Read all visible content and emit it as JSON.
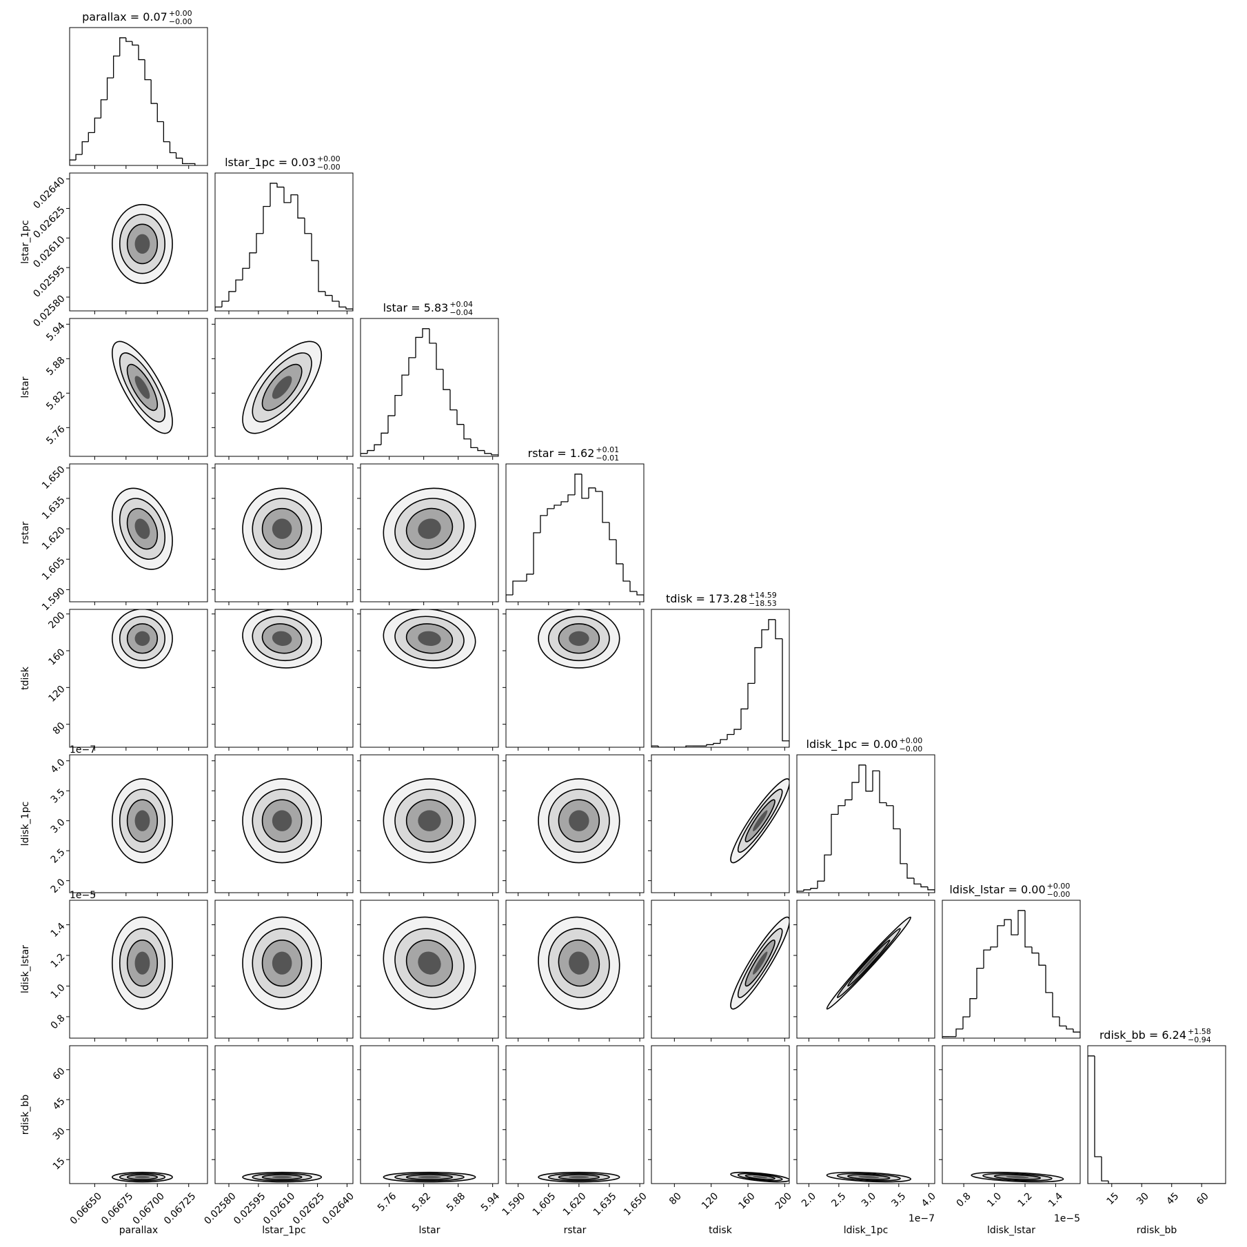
{
  "chart_data": {
    "type": "corner",
    "params": [
      {
        "label": "parallax",
        "title": "parallax = 0.07",
        "upper": "+0.00",
        "lower": "−0.00",
        "xlim": [
          0.0663,
          0.0674
        ],
        "xticks": [
          {
            "value": 0.0665,
            "label": "0.06650"
          },
          0.06675,
          {
            "value": 0.067,
            "label": "0.06700"
          },
          0.06725
        ],
        "bins": [
          0.0663,
          0.06635,
          0.0664,
          0.06645,
          0.0665,
          0.06655,
          0.0666,
          0.06665,
          0.0667,
          0.06675,
          0.0668,
          0.06685,
          0.0669,
          0.06695,
          0.067,
          0.06705,
          0.0671,
          0.06715,
          0.0672,
          0.06725,
          0.0673
        ],
        "counts": [
          3,
          6,
          13,
          18,
          26,
          36,
          48,
          60,
          70,
          68,
          66,
          58,
          47,
          34,
          24,
          13,
          7,
          4,
          1,
          1
        ],
        "mean": 0.06688,
        "sd": 0.00012
      },
      {
        "label": "lstar_1pc",
        "title": "lstar_1pc = 0.03",
        "upper": "+0.00",
        "lower": "−0.00",
        "xlim": [
          0.02573,
          0.02643
        ],
        "xticks": [
          {
            "value": 0.0258,
            "label": "0.02580"
          },
          0.02595,
          {
            "value": 0.0261,
            "label": "0.02610"
          },
          0.02625,
          {
            "value": 0.0264,
            "label": "0.02640"
          }
        ],
        "bins": [
          0.02573,
          0.025765,
          0.0258,
          0.025835,
          0.02587,
          0.025905,
          0.02594,
          0.025975,
          0.02601,
          0.026045,
          0.02608,
          0.026115,
          0.02615,
          0.026185,
          0.02622,
          0.026255,
          0.02629,
          0.026325,
          0.02636,
          0.026395,
          0.02643
        ],
        "counts": [
          2,
          5,
          10,
          16,
          22,
          30,
          40,
          54,
          66,
          64,
          56,
          60,
          48,
          40,
          26,
          10,
          8,
          5,
          2,
          1
        ],
        "mean": 0.02607,
        "sd": 0.0001
      },
      {
        "label": "lstar",
        "title": "lstar = 5.83",
        "upper": "+0.04",
        "lower": "−0.04",
        "xlim": [
          5.71,
          5.95
        ],
        "xticks": [
          5.76,
          5.82,
          5.88,
          5.94
        ],
        "bins": [
          5.71,
          5.722,
          5.734,
          5.746,
          5.758,
          5.77,
          5.782,
          5.794,
          5.806,
          5.818,
          5.83,
          5.842,
          5.854,
          5.866,
          5.878,
          5.89,
          5.902,
          5.914,
          5.926,
          5.938,
          5.95
        ],
        "counts": [
          2,
          4,
          8,
          16,
          28,
          42,
          56,
          68,
          82,
          88,
          78,
          60,
          46,
          32,
          22,
          12,
          6,
          4,
          2,
          1
        ],
        "mean": 5.83,
        "sd": 0.04
      },
      {
        "label": "rstar",
        "title": "rstar = 1.62",
        "upper": "+0.01",
        "lower": "−0.01",
        "xlim": [
          1.584,
          1.652
        ],
        "xticks": [
          {
            "value": 1.59,
            "label": "1.590"
          },
          1.605,
          {
            "value": 1.62,
            "label": "1.620"
          },
          1.635,
          {
            "value": 1.65,
            "label": "1.650"
          }
        ],
        "bins": [
          1.584,
          1.5874,
          1.5908,
          1.5942,
          1.5976,
          1.601,
          1.6044,
          1.6078,
          1.6112,
          1.6146,
          1.618,
          1.6214,
          1.6248,
          1.6282,
          1.6316,
          1.635,
          1.6384,
          1.6418,
          1.6452,
          1.6486,
          1.652
        ],
        "counts": [
          4,
          12,
          12,
          16,
          40,
          50,
          54,
          56,
          58,
          62,
          74,
          60,
          66,
          64,
          46,
          36,
          22,
          12,
          6,
          4
        ],
        "mean": 1.62,
        "sd": 0.01
      },
      {
        "label": "tdisk",
        "title": "tdisk = 173.28",
        "upper": "+14.59",
        "lower": "−18.53",
        "xlim": [
          55,
          205
        ],
        "xticks": [
          80,
          120,
          160,
          200
        ],
        "bins": [
          55,
          62.5,
          70,
          77.5,
          85,
          92.5,
          100,
          107.5,
          115,
          122.5,
          130,
          137.5,
          145,
          152.5,
          160,
          167.5,
          175,
          182.5,
          190,
          197.5,
          205
        ],
        "counts": [
          1,
          0,
          0,
          0,
          0,
          1,
          1,
          1,
          2,
          3,
          6,
          10,
          14,
          30,
          50,
          78,
          92,
          100,
          85,
          5
        ],
        "mean": 173.28,
        "sd": 16
      },
      {
        "label": "ldisk_1pc",
        "title": "ldisk_1pc = 0.00",
        "upper": "+0.00",
        "lower": "−0.00",
        "offset": "1e−7",
        "xlim": [
          1.8e-07,
          4.1e-07
        ],
        "xticks": [
          {
            "value": 2e-07,
            "label": "2.0"
          },
          {
            "value": 2.5e-07,
            "label": "2.5"
          },
          {
            "value": 3e-07,
            "label": "3.0"
          },
          {
            "value": 3.5e-07,
            "label": "3.5"
          },
          {
            "value": 4e-07,
            "label": "4.0"
          }
        ],
        "bins": [
          1.8e-07,
          1.915e-07,
          2.03e-07,
          2.145e-07,
          2.26e-07,
          2.375e-07,
          2.49e-07,
          2.605e-07,
          2.72e-07,
          2.835e-07,
          2.95e-07,
          3.065e-07,
          3.18e-07,
          3.295e-07,
          3.41e-07,
          3.525e-07,
          3.64e-07,
          3.755e-07,
          3.87e-07,
          3.985e-07,
          4.1e-07
        ],
        "counts": [
          1,
          2,
          3,
          8,
          26,
          54,
          60,
          64,
          76,
          88,
          70,
          84,
          62,
          60,
          44,
          20,
          10,
          6,
          4,
          2
        ],
        "mean": 3e-07,
        "sd": 3.5e-08
      },
      {
        "label": "ldisk_lstar",
        "title": "ldisk_lstar = 0.00",
        "upper": "+0.00",
        "lower": "−0.00",
        "offset": "1e−5",
        "xlim": [
          6.6e-06,
          1.56e-05
        ],
        "xticks": [
          {
            "value": 8e-06,
            "label": "0.8"
          },
          {
            "value": 1e-05,
            "label": "1.0"
          },
          {
            "value": 1.2e-05,
            "label": "1.2"
          },
          {
            "value": 1.4e-05,
            "label": "1.4"
          }
        ],
        "bins": [
          6.6e-06,
          7.05e-06,
          7.5e-06,
          7.95e-06,
          8.4e-06,
          8.85e-06,
          9.3e-06,
          9.75e-06,
          1.02e-05,
          1.065e-05,
          1.11e-05,
          1.155e-05,
          1.2e-05,
          1.245e-05,
          1.29e-05,
          1.335e-05,
          1.38e-05,
          1.425e-05,
          1.47e-05,
          1.515e-05,
          1.56e-05
        ],
        "counts": [
          1,
          1,
          6,
          14,
          26,
          46,
          58,
          60,
          74,
          78,
          68,
          84,
          60,
          56,
          48,
          30,
          14,
          8,
          6,
          4
        ],
        "mean": 1.15e-05,
        "sd": 1.5e-06
      },
      {
        "label": "rdisk_bb",
        "title": "rdisk_bb = 6.24",
        "upper": "+1.58",
        "lower": "−0.94",
        "xlim": [
          3,
          72
        ],
        "xticks": [
          15,
          30,
          45,
          60
        ],
        "bins": [
          3,
          6.45,
          9.9,
          13.35,
          16.8,
          20.25,
          23.7,
          27.15,
          30.6,
          34.05,
          37.5,
          40.95,
          44.4,
          47.85,
          51.3,
          54.75,
          58.2,
          61.65,
          65.1,
          68.55,
          72
        ],
        "counts": [
          95,
          20,
          2,
          0,
          0,
          0,
          0,
          0,
          0,
          0,
          0,
          0,
          0,
          0,
          0,
          0,
          0,
          0,
          0,
          0
        ],
        "mean": 6.24,
        "sd": 1.2
      }
    ],
    "correlations": [
      [],
      [
        0
      ],
      [
        -0.75,
        0.7
      ],
      [
        -0.3,
        0,
        0.1
      ],
      [
        0,
        -0.1,
        -0.1,
        0
      ],
      [
        0,
        0,
        0,
        0,
        0.92
      ],
      [
        0,
        0,
        -0.1,
        -0.05,
        0.92,
        0.99
      ],
      [
        0,
        0,
        0,
        0,
        -0.6,
        -0.4,
        -0.4
      ]
    ]
  }
}
